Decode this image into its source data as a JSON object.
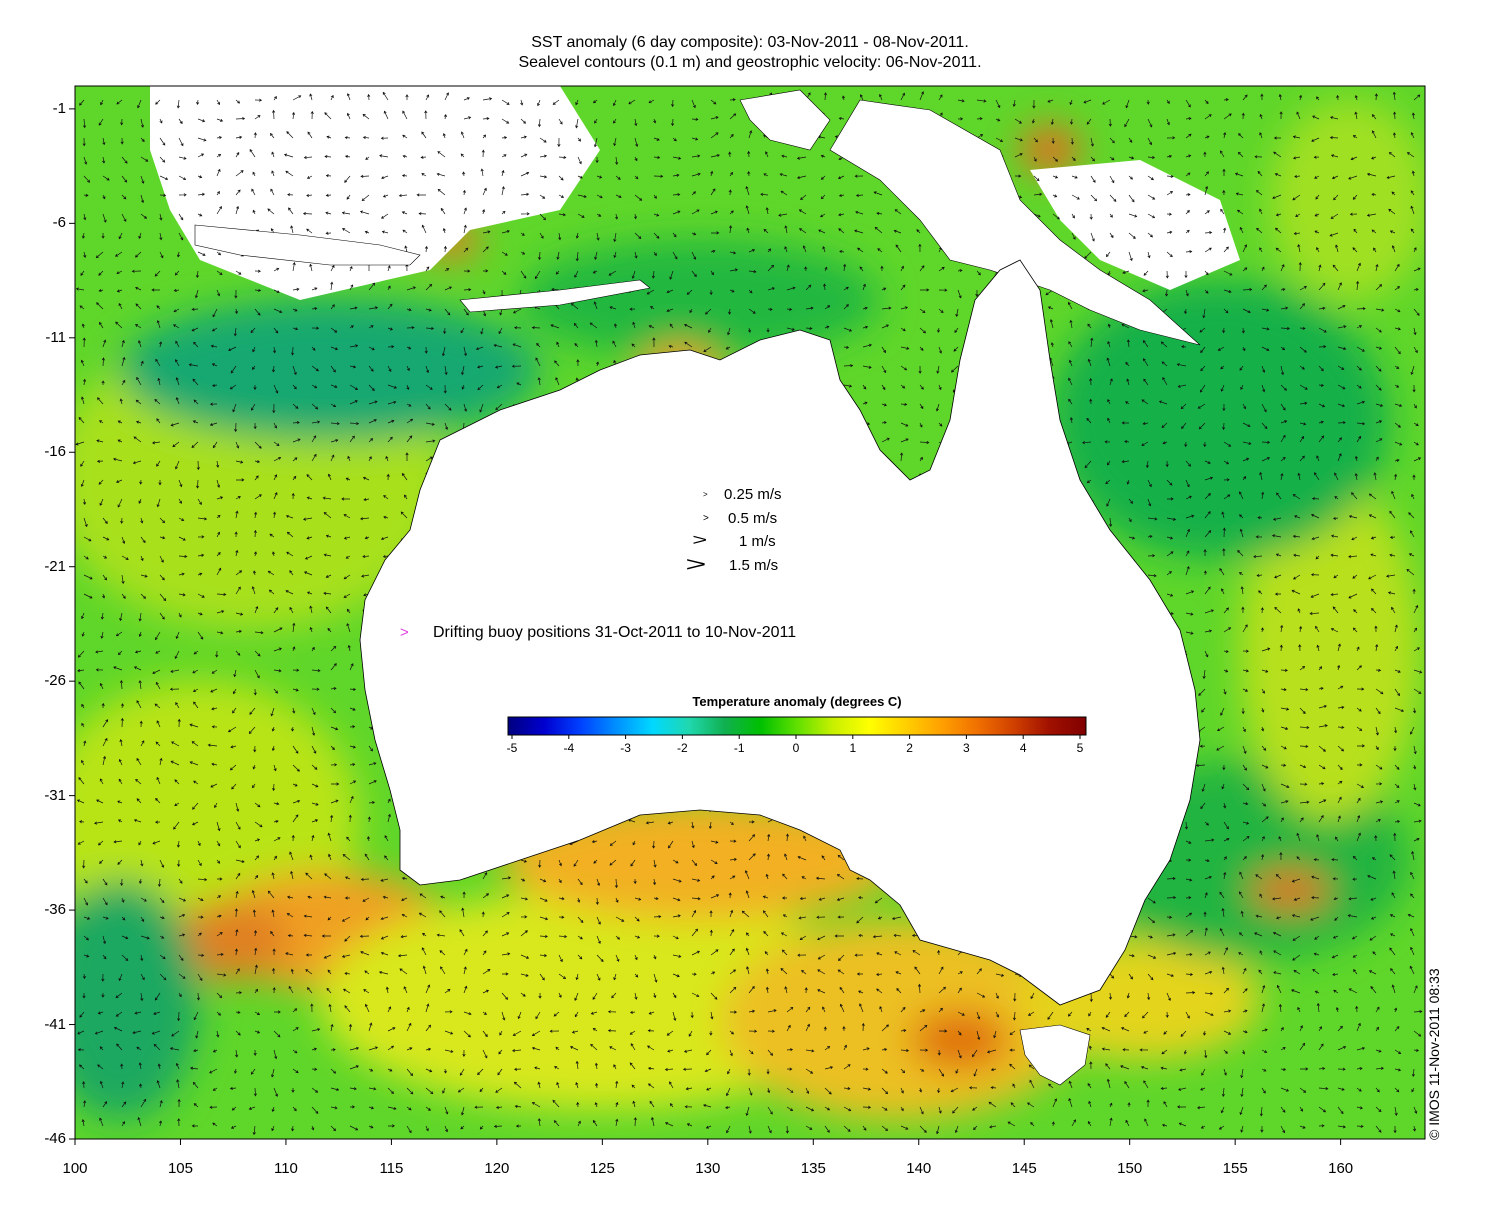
{
  "title": {
    "line1": "SST anomaly (6 day composite): 03-Nov-2011 - 08-Nov-2011.",
    "line2": "Sealevel contours (0.1 m) and geostrophic velocity: 06-Nov-2011."
  },
  "axes": {
    "x_ticks": [
      "100",
      "105",
      "110",
      "115",
      "120",
      "125",
      "130",
      "135",
      "140",
      "145",
      "150",
      "155",
      "160"
    ],
    "y_ticks": [
      "-1",
      "-6",
      "-11",
      "-16",
      "-21",
      "-26",
      "-31",
      "-36",
      "-41",
      "-46"
    ],
    "lon_range": [
      100,
      164
    ],
    "lat_range": [
      -46,
      0
    ]
  },
  "velocity_legend": [
    {
      "symbol": ">",
      "label": "0.25 m/s"
    },
    {
      "symbol": ">",
      "label": "0.5 m/s"
    },
    {
      "symbol": ">",
      "label": "1 m/s"
    },
    {
      "symbol": ">",
      "label": "1.5 m/s"
    }
  ],
  "buoy_legend": {
    "symbol": ">",
    "label": "Drifting buoy positions 31-Oct-2011 to 10-Nov-2011",
    "color": "#e040e0"
  },
  "colorbar": {
    "title": "Temperature anomaly (degrees C)",
    "ticks": [
      "-5",
      "-4",
      "-3",
      "-2",
      "-1",
      "0",
      "1",
      "2",
      "3",
      "4",
      "5"
    ],
    "colors": [
      "#00007f",
      "#0000d0",
      "#0040ff",
      "#0090ff",
      "#00d8ff",
      "#20d8b0",
      "#10b050",
      "#00c000",
      "#60e000",
      "#c8f000",
      "#ffff00",
      "#ffd000",
      "#ffa000",
      "#f07000",
      "#d04000",
      "#a01000",
      "#800000"
    ]
  },
  "credit": "© IMOS 11-Nov-2011 08:33",
  "colors": {
    "ocean_green": "#22c42a",
    "ocean_yellow": "#d4e81a",
    "ocean_orange": "#f0a020",
    "land": "#ffffff"
  }
}
